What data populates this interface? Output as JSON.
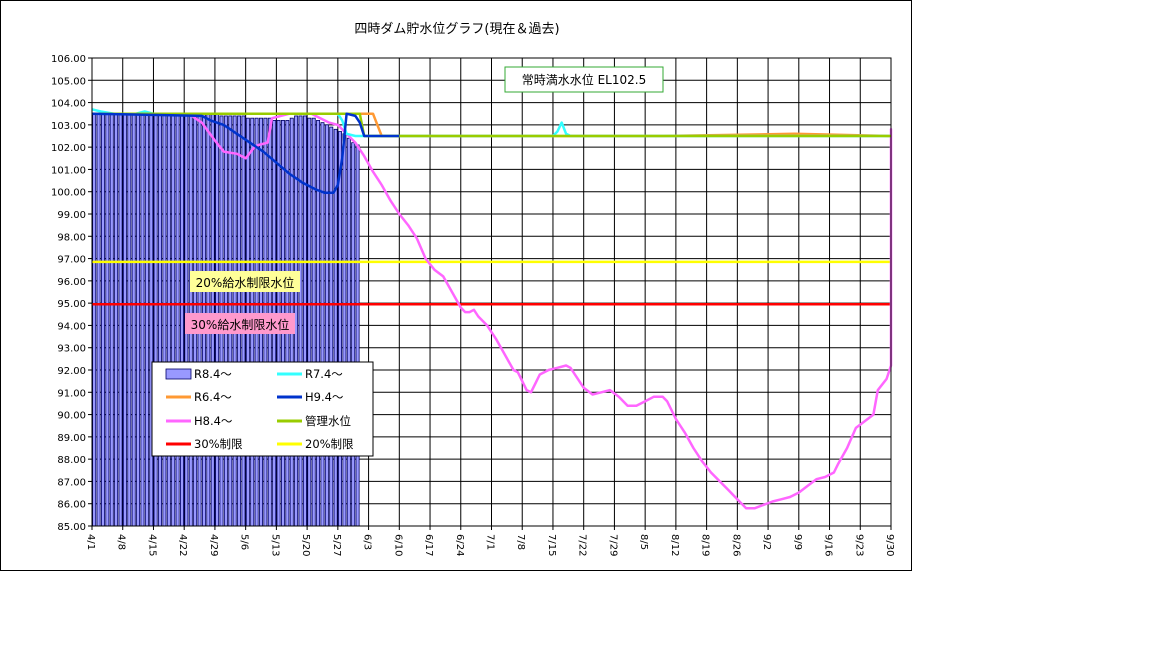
{
  "chart_data": {
    "type": "line",
    "title": "四時ダム貯水位グラフ(現在＆過去)",
    "ylim": [
      85.0,
      106.0
    ],
    "ystep": 1.0,
    "grid": true,
    "legend_position": "lower-left",
    "x_tick_labels": [
      "4/1",
      "4/8",
      "4/15",
      "4/22",
      "4/29",
      "5/6",
      "5/13",
      "5/20",
      "5/27",
      "6/3",
      "6/10",
      "6/17",
      "6/24",
      "7/1",
      "7/8",
      "7/15",
      "7/22",
      "7/29",
      "8/5",
      "8/12",
      "8/19",
      "8/26",
      "9/2",
      "9/9",
      "9/16",
      "9/23",
      "9/30"
    ],
    "x_day_range": [
      0,
      182
    ],
    "annotations": {
      "full_level": "常時満水水位 EL102.5",
      "limit20": "20%給水制限水位",
      "limit30": "30%給水制限水位"
    },
    "bars": {
      "name": "R8.4～",
      "color": "#9999ff",
      "start_day": 0,
      "values": [
        103.5,
        103.5,
        103.5,
        103.5,
        103.5,
        103.5,
        103.5,
        103.5,
        103.5,
        103.5,
        103.5,
        103.5,
        103.5,
        103.5,
        103.5,
        103.5,
        103.5,
        103.5,
        103.5,
        103.5,
        103.5,
        103.5,
        103.5,
        103.5,
        103.5,
        103.5,
        103.5,
        103.5,
        103.5,
        103.4,
        103.4,
        103.4,
        103.4,
        103.4,
        103.4,
        103.3,
        103.3,
        103.3,
        103.3,
        103.3,
        103.3,
        103.2,
        103.2,
        103.2,
        103.2,
        103.3,
        103.4,
        103.4,
        103.4,
        103.3,
        103.3,
        103.2,
        103.1,
        103.0,
        102.9,
        102.8,
        102.7,
        102.6,
        102.4,
        102.2,
        102.1
      ]
    },
    "series": [
      {
        "name": "R7.4～",
        "color": "#33ffff",
        "points": [
          [
            0,
            103.7
          ],
          [
            2,
            103.6
          ],
          [
            5,
            103.5
          ],
          [
            10,
            103.5
          ],
          [
            12,
            103.6
          ],
          [
            14,
            103.5
          ],
          [
            40,
            103.5
          ],
          [
            56,
            103.5
          ],
          [
            57,
            103.2
          ],
          [
            58,
            102.6
          ],
          [
            60,
            102.5
          ],
          [
            80,
            102.5
          ],
          [
            100,
            102.5
          ],
          [
            105,
            102.5
          ],
          [
            106,
            102.7
          ],
          [
            107,
            103.1
          ],
          [
            108,
            102.6
          ],
          [
            109,
            102.5
          ],
          [
            130,
            102.5
          ],
          [
            150,
            102.5
          ],
          [
            182,
            102.5
          ]
        ]
      },
      {
        "name": "R6.4～",
        "color": "#ff9933",
        "points": [
          [
            0,
            103.5
          ],
          [
            58,
            103.5
          ],
          [
            64,
            103.5
          ],
          [
            66,
            102.5
          ],
          [
            70,
            102.5
          ],
          [
            100,
            102.5
          ],
          [
            130,
            102.5
          ],
          [
            160,
            102.6
          ],
          [
            182,
            102.5
          ]
        ]
      },
      {
        "name": "H9.4～",
        "color": "#0033cc",
        "points": [
          [
            0,
            103.5
          ],
          [
            25,
            103.4
          ],
          [
            27,
            103.2
          ],
          [
            30,
            103.0
          ],
          [
            33,
            102.6
          ],
          [
            36,
            102.2
          ],
          [
            39,
            101.8
          ],
          [
            42,
            101.3
          ],
          [
            45,
            100.8
          ],
          [
            48,
            100.4
          ],
          [
            51,
            100.1
          ],
          [
            53,
            99.95
          ],
          [
            55,
            99.95
          ],
          [
            56,
            100.3
          ],
          [
            57,
            101.5
          ],
          [
            58,
            103.5
          ],
          [
            60,
            103.4
          ],
          [
            61,
            103.1
          ],
          [
            62,
            102.5
          ],
          [
            64,
            102.5
          ],
          [
            70,
            102.5
          ]
        ]
      },
      {
        "name": "H8.4～",
        "color": "#ff66ff",
        "points": [
          [
            0,
            103.5
          ],
          [
            22,
            103.5
          ],
          [
            25,
            103.1
          ],
          [
            28,
            102.3
          ],
          [
            30,
            101.8
          ],
          [
            33,
            101.7
          ],
          [
            35,
            101.5
          ],
          [
            37,
            102.0
          ],
          [
            38,
            102.1
          ],
          [
            40,
            102.2
          ],
          [
            41,
            103.3
          ],
          [
            45,
            103.5
          ],
          [
            48,
            103.5
          ],
          [
            50,
            103.5
          ],
          [
            52,
            103.3
          ],
          [
            54,
            103.1
          ],
          [
            56,
            103.0
          ],
          [
            58,
            102.6
          ],
          [
            60,
            102.2
          ],
          [
            62,
            101.6
          ],
          [
            64,
            100.9
          ],
          [
            66,
            100.3
          ],
          [
            68,
            99.6
          ],
          [
            70,
            99.0
          ],
          [
            72,
            98.5
          ],
          [
            74,
            97.9
          ],
          [
            76,
            97.0
          ],
          [
            78,
            96.5
          ],
          [
            80,
            96.2
          ],
          [
            82,
            95.5
          ],
          [
            84,
            94.8
          ],
          [
            85,
            94.6
          ],
          [
            86,
            94.6
          ],
          [
            87,
            94.7
          ],
          [
            88,
            94.4
          ],
          [
            90,
            94.0
          ],
          [
            92,
            93.4
          ],
          [
            94,
            92.7
          ],
          [
            96,
            92.0
          ],
          [
            97,
            91.9
          ],
          [
            98,
            91.5
          ],
          [
            99,
            91.1
          ],
          [
            100,
            91.0
          ],
          [
            101,
            91.4
          ],
          [
            102,
            91.8
          ],
          [
            104,
            92.0
          ],
          [
            106,
            92.1
          ],
          [
            108,
            92.2
          ],
          [
            109,
            92.1
          ],
          [
            110,
            91.8
          ],
          [
            112,
            91.2
          ],
          [
            114,
            90.9
          ],
          [
            116,
            91.0
          ],
          [
            118,
            91.1
          ],
          [
            120,
            90.8
          ],
          [
            122,
            90.4
          ],
          [
            124,
            90.4
          ],
          [
            126,
            90.6
          ],
          [
            128,
            90.8
          ],
          [
            130,
            90.8
          ],
          [
            131,
            90.6
          ],
          [
            133,
            89.8
          ],
          [
            135,
            89.2
          ],
          [
            137,
            88.5
          ],
          [
            139,
            87.9
          ],
          [
            141,
            87.4
          ],
          [
            143,
            87.0
          ],
          [
            145,
            86.6
          ],
          [
            147,
            86.2
          ],
          [
            149,
            85.8
          ],
          [
            151,
            85.8
          ],
          [
            153,
            85.95
          ],
          [
            155,
            86.1
          ],
          [
            157,
            86.2
          ],
          [
            159,
            86.3
          ],
          [
            161,
            86.5
          ],
          [
            163,
            86.8
          ],
          [
            165,
            87.1
          ],
          [
            167,
            87.2
          ],
          [
            169,
            87.4
          ],
          [
            170,
            87.8
          ],
          [
            172,
            88.5
          ],
          [
            174,
            89.4
          ],
          [
            176,
            89.7
          ],
          [
            178,
            90.0
          ],
          [
            179,
            91.1
          ],
          [
            181,
            91.6
          ],
          [
            183,
            92.2
          ],
          [
            185,
            92.4
          ],
          [
            187,
            92.7
          ],
          [
            188,
            93.0
          ],
          [
            189,
            102.4
          ],
          [
            190,
            102.6
          ],
          [
            193,
            102.8
          ],
          [
            195,
            102.5
          ],
          [
            197,
            102.5
          ]
        ]
      },
      {
        "name": "管理水位",
        "color": "#99cc00",
        "points": [
          [
            0,
            103.5
          ],
          [
            61,
            103.5
          ],
          [
            62,
            102.5
          ],
          [
            70,
            102.5
          ],
          [
            80,
            102.5
          ],
          [
            100,
            102.5
          ],
          [
            150,
            102.5
          ],
          [
            182,
            102.5
          ]
        ]
      },
      {
        "name": "30%制限",
        "color": "#ff0000",
        "points": [
          [
            0,
            94.95
          ],
          [
            182,
            94.95
          ]
        ]
      },
      {
        "name": "20%制限",
        "color": "#ffff00",
        "points": [
          [
            0,
            96.85
          ],
          [
            182,
            96.85
          ]
        ]
      }
    ]
  }
}
